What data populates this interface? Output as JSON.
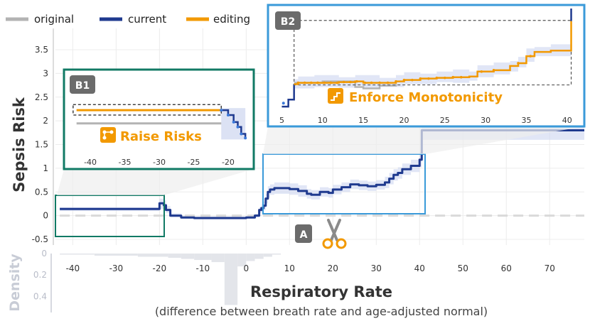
{
  "legend": [
    {
      "label": "original",
      "color": "#b3b3b3"
    },
    {
      "label": "current",
      "color": "#1f3a8f"
    },
    {
      "label": "editing",
      "color": "#f29900"
    }
  ],
  "colors": {
    "current": "#1f3a8f",
    "original": "#b3b3b3",
    "editing": "#f29900",
    "band": "#cdd6f0",
    "b1_frame": "#117a65",
    "b2_frame": "#3a9ad9",
    "badge": "#6b6b6b",
    "density": "#e3e5ea"
  },
  "chart_data": {
    "type": "line",
    "ylabel": "Sepsis Risk",
    "xlabel": "Respiratory Rate",
    "xlabel_sub": "(difference between breath rate and age-adjusted normal)",
    "density_label": "Density",
    "xlim": [
      -44,
      78
    ],
    "ylim": [
      -0.62,
      3.95
    ],
    "x_ticks": [
      -40,
      -30,
      -20,
      -10,
      0,
      10,
      20,
      30,
      40,
      50,
      60,
      70
    ],
    "y_ticks": [
      -0.5,
      0,
      0.5,
      1,
      1.5,
      2,
      2.5,
      3,
      3.5
    ],
    "density_ticks": [
      0,
      0.2,
      0.4
    ],
    "density_ylim": [
      0,
      0.55
    ],
    "series": [
      {
        "name": "current",
        "x": [
          -43,
          -21,
          -20,
          -19,
          -18.5,
          -17.5,
          -15,
          -12,
          -10,
          -5,
          0,
          2,
          3,
          3.5,
          4,
          4.5,
          5,
          5.5,
          6.5,
          8,
          10,
          12,
          14,
          15,
          17,
          19,
          20,
          22,
          24,
          26,
          28,
          30,
          32,
          33,
          34,
          35,
          36,
          38,
          40,
          40.5,
          78
        ],
        "y": [
          0.14,
          0.14,
          0.26,
          0.22,
          0.12,
          0.0,
          -0.04,
          -0.05,
          -0.05,
          -0.05,
          -0.04,
          0.0,
          0.12,
          0.16,
          0.21,
          0.36,
          0.5,
          0.55,
          0.58,
          0.58,
          0.56,
          0.52,
          0.46,
          0.44,
          0.5,
          0.48,
          0.55,
          0.6,
          0.66,
          0.64,
          0.62,
          0.65,
          0.7,
          0.78,
          0.86,
          0.9,
          0.98,
          1.05,
          1.18,
          1.8,
          1.8
        ]
      }
    ],
    "band": {
      "x": [
        -43,
        -21,
        -20,
        -19,
        -18.5,
        -17.5,
        -15,
        -12,
        -10,
        -5,
        0,
        2,
        3,
        3.5,
        4,
        4.5,
        5,
        5.5,
        6.5,
        8,
        10,
        12,
        14,
        15,
        17,
        19,
        20,
        22,
        24,
        26,
        28,
        30,
        32,
        33,
        34,
        35,
        36,
        38,
        40,
        40.5,
        78
      ],
      "lower": [
        0.1,
        0.1,
        0.14,
        0.12,
        0.06,
        -0.04,
        -0.07,
        -0.08,
        -0.08,
        -0.08,
        -0.07,
        -0.04,
        0.06,
        0.08,
        0.12,
        0.26,
        0.38,
        0.44,
        0.46,
        0.46,
        0.44,
        0.4,
        0.36,
        0.34,
        0.4,
        0.38,
        0.45,
        0.5,
        0.56,
        0.54,
        0.52,
        0.55,
        0.58,
        0.66,
        0.74,
        0.78,
        0.86,
        0.92,
        1.02,
        1.6,
        1.6
      ],
      "upper": [
        0.18,
        0.18,
        0.36,
        0.32,
        0.2,
        0.05,
        -0.01,
        -0.02,
        -0.02,
        -0.02,
        -0.01,
        0.04,
        0.18,
        0.24,
        0.3,
        0.46,
        0.62,
        0.66,
        0.7,
        0.7,
        0.68,
        0.64,
        0.56,
        0.54,
        0.6,
        0.58,
        0.65,
        0.7,
        0.76,
        0.74,
        0.72,
        0.75,
        0.82,
        0.9,
        0.98,
        1.02,
        1.1,
        1.18,
        1.34,
        1.98,
        1.98
      ]
    },
    "density": {
      "x": [
        -43,
        -35,
        -25,
        -18,
        -15,
        -12,
        -8,
        -5,
        -2,
        0,
        2,
        4,
        6,
        8
      ],
      "values": [
        0.01,
        0.02,
        0.03,
        0.04,
        0.05,
        0.06,
        0.08,
        0.48,
        0.12,
        0.07,
        0.05,
        0.03,
        0.01,
        0.0
      ]
    },
    "editing_line": {
      "x": [
        -43,
        78
      ],
      "y": [
        0,
        0
      ]
    },
    "annotations": {
      "A": {
        "label": "A"
      },
      "B1": {
        "label": "B1",
        "action": "Raise Risks",
        "x_ticks": [
          -40,
          -35,
          -30,
          -25,
          -20
        ]
      },
      "B2": {
        "label": "B2",
        "action": "Enforce Monotonicity",
        "x_ticks": [
          5,
          10,
          15,
          20,
          25,
          30,
          35,
          40
        ]
      }
    }
  }
}
